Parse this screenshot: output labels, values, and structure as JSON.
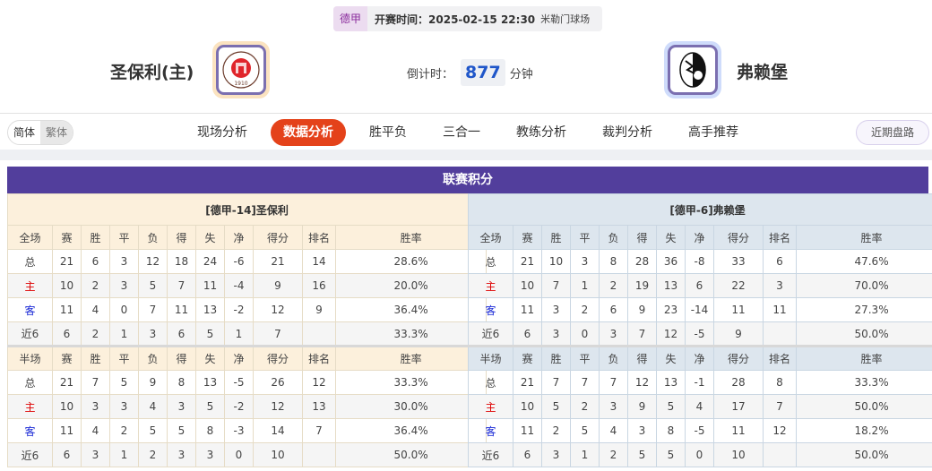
{
  "match": {
    "league": "德甲",
    "time": "开赛时间：2025-02-15 22:30",
    "venue": "米勒门球场"
  },
  "home": {
    "name": "圣保利(主)",
    "logo_text_top": "FC ST. PAULI",
    "logo_text_bottom": "1910"
  },
  "away": {
    "name": "弗赖堡"
  },
  "countdown": {
    "label": "倒计时：",
    "value": "877",
    "unit": "分钟"
  },
  "lang": {
    "simplified": "简体",
    "traditional": "繁体"
  },
  "tabs": [
    {
      "label": "现场分析"
    },
    {
      "label": "数据分析",
      "active": true
    },
    {
      "label": "胜平负"
    },
    {
      "label": "三合一"
    },
    {
      "label": "教练分析"
    },
    {
      "label": "裁判分析"
    },
    {
      "label": "高手推荐"
    }
  ],
  "recent_button": "近期盘路",
  "section_title": "联赛积分",
  "columns_full": [
    "全场",
    "赛",
    "胜",
    "平",
    "负",
    "得",
    "失",
    "净",
    "得分",
    "排名",
    "胜率"
  ],
  "columns_half": [
    "半场",
    "赛",
    "胜",
    "平",
    "负",
    "得",
    "失",
    "净",
    "得分",
    "排名",
    "胜率"
  ],
  "colors": {
    "accent": "#e4421a",
    "title_bar": "#523e9c",
    "home_label": "#dd0000",
    "away_label": "#1c2bd6"
  },
  "tables": [
    {
      "title": "[德甲-14]圣保利",
      "full": [
        [
          "总",
          "21",
          "6",
          "3",
          "12",
          "18",
          "24",
          "-6",
          "21",
          "14",
          "28.6%"
        ],
        [
          "主",
          "10",
          "2",
          "3",
          "5",
          "7",
          "11",
          "-4",
          "9",
          "16",
          "20.0%"
        ],
        [
          "客",
          "11",
          "4",
          "0",
          "7",
          "11",
          "13",
          "-2",
          "12",
          "9",
          "36.4%"
        ],
        [
          "近6",
          "6",
          "2",
          "1",
          "3",
          "6",
          "5",
          "1",
          "7",
          "",
          "33.3%"
        ]
      ],
      "half": [
        [
          "总",
          "21",
          "7",
          "5",
          "9",
          "8",
          "13",
          "-5",
          "26",
          "12",
          "33.3%"
        ],
        [
          "主",
          "10",
          "3",
          "3",
          "4",
          "3",
          "5",
          "-2",
          "12",
          "13",
          "30.0%"
        ],
        [
          "客",
          "11",
          "4",
          "2",
          "5",
          "5",
          "8",
          "-3",
          "14",
          "7",
          "36.4%"
        ],
        [
          "近6",
          "6",
          "3",
          "1",
          "2",
          "3",
          "3",
          "0",
          "10",
          "",
          "50.0%"
        ]
      ]
    },
    {
      "title": "[德甲-6]弗赖堡",
      "full": [
        [
          "总",
          "21",
          "10",
          "3",
          "8",
          "28",
          "36",
          "-8",
          "33",
          "6",
          "47.6%"
        ],
        [
          "主",
          "10",
          "7",
          "1",
          "2",
          "19",
          "13",
          "6",
          "22",
          "3",
          "70.0%"
        ],
        [
          "客",
          "11",
          "3",
          "2",
          "6",
          "9",
          "23",
          "-14",
          "11",
          "11",
          "27.3%"
        ],
        [
          "近6",
          "6",
          "3",
          "0",
          "3",
          "7",
          "12",
          "-5",
          "9",
          "",
          "50.0%"
        ]
      ],
      "half": [
        [
          "总",
          "21",
          "7",
          "7",
          "7",
          "12",
          "13",
          "-1",
          "28",
          "8",
          "33.3%"
        ],
        [
          "主",
          "10",
          "5",
          "2",
          "3",
          "9",
          "5",
          "4",
          "17",
          "7",
          "50.0%"
        ],
        [
          "客",
          "11",
          "2",
          "5",
          "4",
          "3",
          "8",
          "-5",
          "11",
          "12",
          "18.2%"
        ],
        [
          "近6",
          "6",
          "3",
          "1",
          "2",
          "5",
          "5",
          "0",
          "10",
          "",
          "50.0%"
        ]
      ]
    }
  ]
}
